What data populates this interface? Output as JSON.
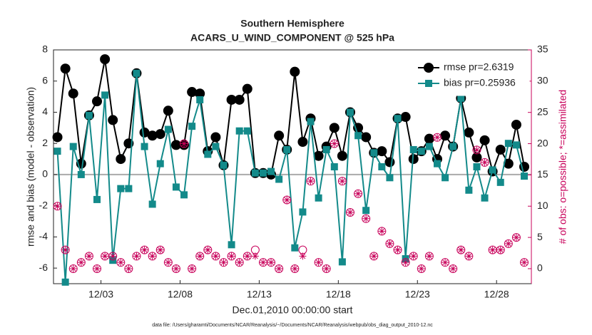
{
  "chart_data": {
    "type": "line",
    "title": "Southern Hemisphere",
    "subtitle": "ACARS_U_WIND_COMPONENT @ 525 hPa",
    "xlabel": "Dec.01,2010 00:00:00 start",
    "ylabel": "rmse and bias (model - observation)",
    "y2label": "# of obs: o=possible; *=assimilated",
    "footnote": "data file: /Users/gharamti/Documents/NCAR/Reanalysis/~/Documents/NCAR/Reanalysis/webpub/obs_diag_output_2010-12.nc",
    "xlim": [
      0,
      30.2
    ],
    "xticks": [
      {
        "value": 3,
        "label": "12/03"
      },
      {
        "value": 8,
        "label": "12/08"
      },
      {
        "value": 13,
        "label": "12/13"
      },
      {
        "value": 18,
        "label": "12/18"
      },
      {
        "value": 23,
        "label": "12/23"
      },
      {
        "value": 28,
        "label": "12/28"
      }
    ],
    "ylim": [
      -7,
      8
    ],
    "yticks": [
      -6,
      -4,
      -2,
      0,
      2,
      4,
      6,
      8
    ],
    "y2lim": [
      -2.4,
      35
    ],
    "y2ticks": [
      0,
      5,
      10,
      15,
      20,
      25,
      30,
      35
    ],
    "zero_line": true,
    "grid": false,
    "legend": "upper right",
    "x": [
      0.25,
      0.75,
      1.25,
      1.75,
      2.25,
      2.75,
      3.25,
      3.75,
      4.25,
      4.75,
      5.25,
      5.75,
      6.25,
      6.75,
      7.25,
      7.75,
      8.25,
      8.75,
      9.25,
      9.75,
      10.25,
      10.75,
      11.25,
      11.75,
      12.25,
      12.75,
      13.25,
      13.75,
      14.25,
      14.75,
      15.25,
      15.75,
      16.25,
      16.75,
      17.25,
      17.75,
      18.25,
      18.75,
      19.25,
      19.75,
      20.25,
      20.75,
      21.25,
      21.75,
      22.25,
      22.75,
      23.25,
      23.75,
      24.25,
      24.75,
      25.25,
      25.75,
      26.25,
      26.75,
      27.25,
      27.75,
      28.25,
      28.75,
      29.25,
      29.75
    ],
    "series": [
      {
        "name": "rmse pr=2.6319",
        "color": "#000000",
        "marker": "circle",
        "values": [
          2.4,
          6.8,
          5.2,
          0.7,
          3.8,
          4.7,
          7.4,
          3.5,
          1.0,
          2.0,
          6.5,
          2.7,
          2.5,
          2.6,
          4.1,
          1.9,
          1.9,
          5.3,
          5.2,
          1.5,
          2.4,
          0.6,
          4.8,
          4.8,
          5.5,
          0.1,
          0.1,
          0.0,
          2.5,
          1.6,
          6.6,
          2.1,
          3.6,
          1.2,
          1.8,
          3.0,
          1.2,
          4.0,
          3.0,
          2.4,
          1.4,
          1.5,
          0.8,
          3.6,
          3.7,
          1.0,
          1.5,
          2.3,
          1.0,
          2.5,
          1.8,
          4.9,
          2.7,
          1.1,
          2.2,
          0.2,
          1.6,
          0.7,
          3.2,
          0.5
        ]
      },
      {
        "name": "bias pr=0.25936",
        "color": "#138a8a",
        "marker": "square",
        "values": [
          1.5,
          -6.9,
          1.8,
          0.0,
          3.8,
          -1.6,
          5.1,
          -5.5,
          -0.9,
          -0.9,
          6.5,
          1.8,
          -1.9,
          0.7,
          2.9,
          -0.8,
          -1.3,
          3.1,
          4.8,
          1.3,
          1.8,
          0.6,
          -4.5,
          2.8,
          2.8,
          0.1,
          0.1,
          0.2,
          -0.3,
          1.6,
          -4.7,
          -2.4,
          3.4,
          -1.5,
          1.6,
          0.5,
          -5.6,
          4.0,
          2.5,
          -2.3,
          1.4,
          0.5,
          -0.2,
          3.6,
          -5.4,
          1.6,
          1.5,
          1.8,
          0.7,
          -0.2,
          1.8,
          4.9,
          -1.0,
          0.5,
          -1.5,
          0.3,
          -0.5,
          2.0,
          1.9,
          -0.1
        ]
      },
      {
        "color": "#c8005a",
        "marker": "open-circle",
        "axis": "y2",
        "values": [
          10,
          3,
          0,
          1,
          2,
          0,
          2,
          2,
          1,
          0,
          2,
          3,
          2,
          3,
          1,
          0,
          20,
          0,
          2,
          3,
          2,
          1,
          2,
          1,
          2,
          3,
          1,
          1,
          0,
          11,
          0,
          3,
          14,
          1,
          0,
          20,
          14,
          9,
          12,
          8,
          2,
          6,
          4,
          3,
          1,
          2,
          0,
          2,
          21,
          1,
          0,
          3,
          2,
          19,
          17,
          3,
          3,
          4,
          5,
          1
        ]
      },
      {
        "color": "#c8005a",
        "marker": "asterisk",
        "axis": "y2",
        "values": [
          10,
          3,
          0,
          1,
          2,
          0,
          2,
          2,
          1,
          0,
          2,
          3,
          2,
          3,
          1,
          0,
          20,
          0,
          2,
          3,
          2,
          1,
          2,
          1,
          2,
          2,
          1,
          1,
          0,
          11,
          0,
          2,
          14,
          1,
          0,
          20,
          14,
          9,
          12,
          8,
          2,
          6,
          4,
          3,
          1,
          2,
          0,
          2,
          21,
          1,
          0,
          3,
          2,
          19,
          17,
          3,
          3,
          4,
          5,
          1
        ]
      }
    ]
  }
}
